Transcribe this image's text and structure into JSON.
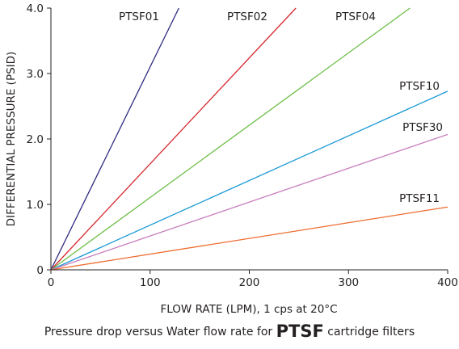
{
  "chart_data": {
    "type": "line",
    "xlabel": "FLOW RATE (LPM), 1 cps at 20°C",
    "ylabel": "DIFFERENTIAL PRESSURE (PSID)",
    "xlim": [
      0,
      400
    ],
    "ylim": [
      0,
      4.0
    ],
    "x_ticks": [
      0,
      100,
      200,
      300,
      400
    ],
    "x_tick_labels": [
      "0",
      "100",
      "200",
      "300",
      "400"
    ],
    "y_ticks": [
      0,
      1.0,
      2.0,
      3.0,
      4.0
    ],
    "y_tick_labels": [
      "0",
      "1.0",
      "2.0",
      "3.0",
      "4.0"
    ],
    "grid": false,
    "legend": "none (series labelled directly on lines)",
    "series": [
      {
        "name": "PTSF01",
        "color": "#2e2a7e",
        "x": [
          0,
          129
        ],
        "y": [
          0,
          4.0
        ]
      },
      {
        "name": "PTSF02",
        "color": "#d7282f",
        "x": [
          0,
          247
        ],
        "y": [
          0,
          4.0
        ]
      },
      {
        "name": "PTSF04",
        "color": "#6cbd45",
        "x": [
          0,
          362
        ],
        "y": [
          0,
          4.0
        ]
      },
      {
        "name": "PTSF10",
        "color": "#1a9ad6",
        "x": [
          0,
          400
        ],
        "y": [
          0,
          2.73
        ]
      },
      {
        "name": "PTSF30",
        "color": "#c77dbb",
        "x": [
          0,
          400
        ],
        "y": [
          0,
          2.07
        ]
      },
      {
        "name": "PTSF11",
        "color": "#ee6b2f",
        "x": [
          0,
          400
        ],
        "y": [
          0,
          0.96
        ]
      }
    ]
  },
  "caption": {
    "prefix": "Pressure drop versus Water flow rate for ",
    "emphasis": "PTSF",
    "suffix": " cartridge filters"
  }
}
